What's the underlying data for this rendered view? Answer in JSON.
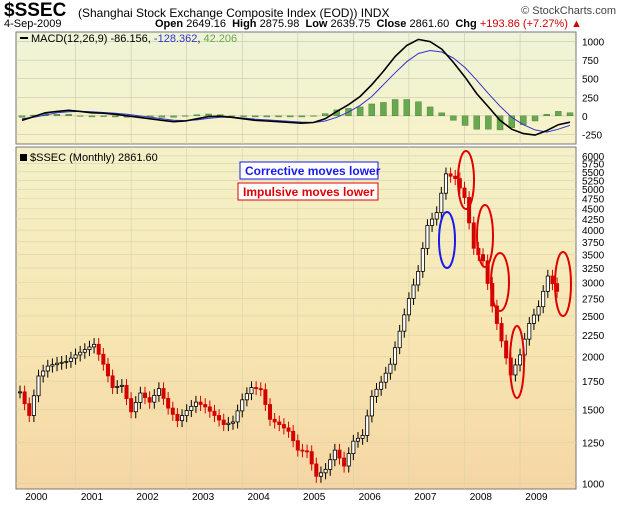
{
  "header": {
    "ticker": "$SSEC",
    "index_name": "(Shanghai Stock Exchange Composite Index (EOD))  INDX",
    "site": "© StockCharts.com",
    "date": "4-Sep-2009",
    "open_label": "Open",
    "open": "2649.16",
    "high_label": "High",
    "high": "2875.98",
    "low_label": "Low",
    "low": "2639.75",
    "close_label": "Close",
    "close": "2861.60",
    "chg_label": "Chg",
    "chg": "+193.86 (+7.27%)",
    "chg_arrow": "▲"
  },
  "colors": {
    "up": "#000000",
    "down": "#d40000",
    "macd": "#000000",
    "signal": "#3333cc",
    "histogram": "#6aa84f",
    "blue_ellipse": "#1a1aee",
    "red_ellipse": "#e00000"
  },
  "chart_data": [
    {
      "type": "line",
      "title": "MACD(12,26,9)",
      "legend": [
        {
          "label": "MACD(12,26,9)",
          "value": "-86.156",
          "color": "#000000"
        },
        {
          "label": "",
          "value": "-128.362",
          "color": "#3333cc"
        },
        {
          "label": "",
          "value": "42.206",
          "color": "#6aa84f"
        }
      ],
      "y_ticks": [
        1000,
        750,
        500,
        250,
        0,
        -250
      ],
      "ylim": [
        -380,
        1130
      ],
      "series": [
        {
          "name": "MACD",
          "values": [
            -60,
            -10,
            40,
            60,
            75,
            60,
            40,
            35,
            20,
            0,
            -20,
            -40,
            -60,
            -80,
            -70,
            -40,
            -10,
            -5,
            -20,
            -40,
            -60,
            -70,
            -80,
            -90,
            -100,
            -90,
            -40,
            60,
            150,
            260,
            420,
            600,
            800,
            950,
            1030,
            1000,
            900,
            720,
            520,
            300,
            120,
            -60,
            -180,
            -240,
            -260,
            -200,
            -120,
            -86
          ]
        },
        {
          "name": "Signal",
          "values": [
            -40,
            -20,
            10,
            40,
            55,
            60,
            55,
            45,
            35,
            20,
            0,
            -20,
            -40,
            -60,
            -65,
            -55,
            -35,
            -20,
            -20,
            -30,
            -45,
            -55,
            -65,
            -75,
            -85,
            -90,
            -70,
            -20,
            50,
            140,
            260,
            420,
            580,
            730,
            840,
            880,
            860,
            780,
            650,
            480,
            300,
            130,
            -20,
            -120,
            -190,
            -220,
            -180,
            -128
          ]
        },
        {
          "name": "Histogram",
          "values": [
            -20,
            10,
            30,
            20,
            20,
            0,
            -15,
            -10,
            -15,
            -20,
            -20,
            -20,
            -20,
            -20,
            -5,
            15,
            25,
            15,
            0,
            -10,
            -15,
            -15,
            -15,
            -15,
            -15,
            0,
            30,
            80,
            100,
            120,
            160,
            180,
            220,
            220,
            190,
            120,
            40,
            -60,
            -130,
            -180,
            -180,
            -190,
            -160,
            -120,
            -70,
            20,
            60,
            42
          ]
        }
      ]
    },
    {
      "type": "bar",
      "title": "$SSEC (Monthly) 2861.60",
      "categories": [
        "2000",
        "2001",
        "2002",
        "2003",
        "2004",
        "2005",
        "2006",
        "2007",
        "2008",
        "2009"
      ],
      "y_scale": "log",
      "y_ticks": [
        6000,
        5750,
        5500,
        5250,
        5000,
        4750,
        4500,
        4250,
        4000,
        3750,
        3500,
        3250,
        3000,
        2750,
        2500,
        2250,
        2000,
        1750,
        1500,
        1250,
        1000
      ],
      "ylim": [
        970,
        6300
      ],
      "x": [
        "2000-01",
        "2000-03",
        "2000-05",
        "2000-07",
        "2000-09",
        "2000-11",
        "2001-01",
        "2001-03",
        "2001-05",
        "2001-07",
        "2001-09",
        "2001-11",
        "2002-01",
        "2002-03",
        "2002-05",
        "2002-07",
        "2002-09",
        "2002-11",
        "2003-01",
        "2003-03",
        "2003-05",
        "2003-07",
        "2003-09",
        "2003-11",
        "2004-01",
        "2004-03",
        "2004-05",
        "2004-07",
        "2004-09",
        "2004-11",
        "2005-01",
        "2005-03",
        "2005-05",
        "2005-07",
        "2005-09",
        "2005-11",
        "2006-01",
        "2006-03",
        "2006-05",
        "2006-07",
        "2006-09",
        "2006-11",
        "2007-01",
        "2007-03",
        "2007-05",
        "2007-07",
        "2007-09",
        "2007-11",
        "2008-01",
        "2008-03",
        "2008-05",
        "2008-07",
        "2008-09",
        "2008-11",
        "2009-01",
        "2009-03",
        "2009-05",
        "2009-07",
        "2009-09"
      ],
      "close": [
        1650,
        1450,
        1800,
        1900,
        1930,
        1950,
        2020,
        2080,
        2140,
        1920,
        1690,
        1710,
        1480,
        1640,
        1560,
        1680,
        1510,
        1410,
        1490,
        1560,
        1520,
        1450,
        1380,
        1400,
        1580,
        1690,
        1670,
        1420,
        1380,
        1330,
        1200,
        1190,
        1040,
        1080,
        1200,
        1100,
        1260,
        1300,
        1610,
        1740,
        1920,
        2300,
        2750,
        3190,
        4100,
        4400,
        5440,
        5300,
        4780,
        3620,
        3380,
        2640,
        2180,
        1810,
        2020,
        2400,
        2630,
        3110,
        2860
      ],
      "annotations": [
        "Corrective moves lower",
        "Impulsive moves lower"
      ]
    }
  ],
  "macd_axis_labels": [
    "1000",
    "750",
    "500",
    "250",
    "0",
    "-250"
  ],
  "price_axis_labels": [
    "6000",
    "5750",
    "5500",
    "5250",
    "5000",
    "4750",
    "4500",
    "4250",
    "4000",
    "3750",
    "3500",
    "3250",
    "3000",
    "2750",
    "2500",
    "2250",
    "2000",
    "1750",
    "1500",
    "1250",
    "1000"
  ],
  "x_labels": [
    "2000",
    "2001",
    "2002",
    "2003",
    "2004",
    "2005",
    "2006",
    "2007",
    "2008",
    "2009"
  ],
  "macd_legend": {
    "label": "MACD(12,26,9)",
    "v1": "-86.156",
    "v2": "-128.362",
    "v3": "42.206"
  },
  "price_legend": "$SSEC (Monthly) 2861.60",
  "annotation_corrective": "Corrective moves lower",
  "annotation_impulsive": "Impulsive moves lower"
}
